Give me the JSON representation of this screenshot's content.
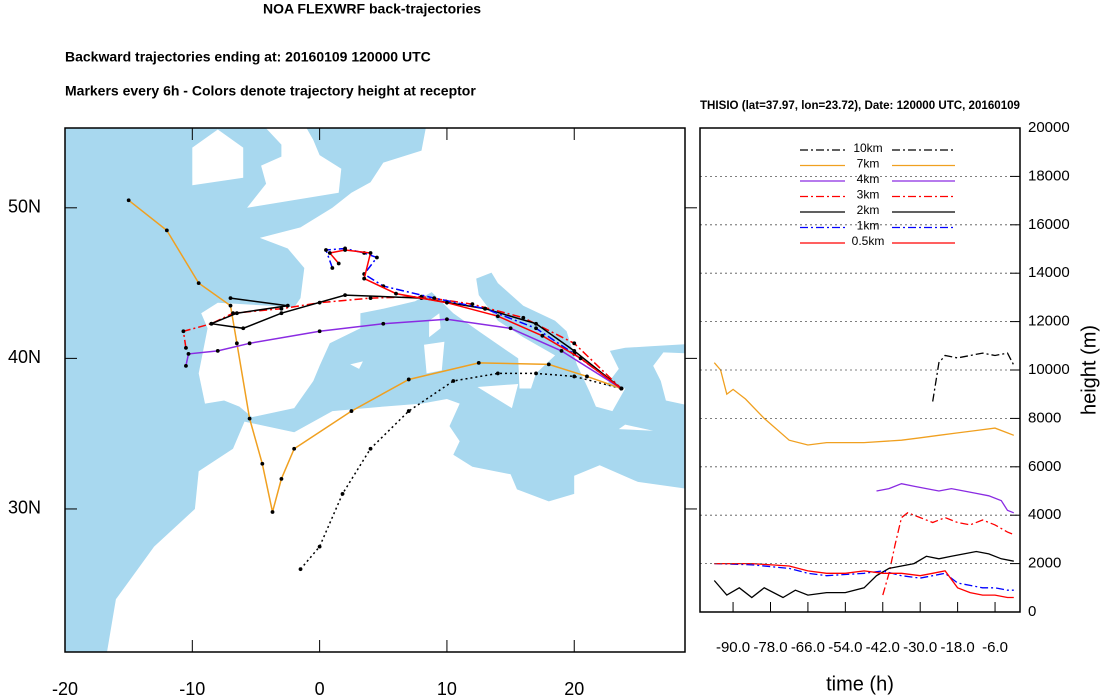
{
  "title": "NOA FLEXWRF back-trajectories",
  "subtitle": "Backward trajectories ending at: 20160109  120000 UTC",
  "note": "Markers every 6h - Colors denote trajectory height at receptor",
  "chart_data": [
    {
      "type": "trajectory-map",
      "xlim": [
        -20,
        28.7
      ],
      "ylim": [
        20.5,
        55.3
      ],
      "xticks": [
        -20,
        -10,
        0,
        10,
        20
      ],
      "yticks": [
        {
          "value": 30,
          "label": "30N"
        },
        {
          "value": 40,
          "label": "40N"
        },
        {
          "value": 50,
          "label": "50N"
        }
      ],
      "markers": true,
      "series": [
        {
          "color": "#000000",
          "dash": "dotted",
          "x": [
            -1.5,
            0,
            1.8,
            4,
            7,
            10.5,
            14,
            17,
            20,
            23.7
          ],
          "values": [
            26,
            27.5,
            31,
            34,
            36.5,
            38.5,
            39,
            39,
            38.8,
            38
          ]
        },
        {
          "color": "#f0a020",
          "dash": "solid",
          "x": [
            -15,
            -12,
            -9.5,
            -7,
            -6.5,
            -5.5,
            -4.5,
            -3.7,
            -3,
            -2,
            2.5,
            7,
            12.5,
            18,
            21,
            23.7
          ],
          "values": [
            50.5,
            48.5,
            45,
            43.5,
            41,
            36,
            33,
            29.8,
            32,
            34,
            36.5,
            38.6,
            39.7,
            39.6,
            38.8,
            38
          ]
        },
        {
          "color": "#8a2be2",
          "dash": "solid",
          "x": [
            -10.5,
            -10.3,
            -8,
            -5.5,
            0,
            5,
            10,
            15,
            19,
            23.7
          ],
          "values": [
            39.5,
            40.3,
            40.5,
            41,
            41.8,
            42.3,
            42.6,
            42,
            40.5,
            38
          ]
        },
        {
          "color": "#ff0000",
          "dash": "dash-dot",
          "x": [
            -10.5,
            -10.7,
            -8.5,
            -6.8,
            -3,
            0,
            4,
            8,
            12,
            16,
            20,
            23.7
          ],
          "values": [
            40.7,
            41.8,
            42.3,
            43,
            43.3,
            43.7,
            44,
            44.1,
            43.6,
            42.7,
            41,
            38
          ]
        },
        {
          "color": "#000000",
          "dash": "solid",
          "x": [
            -7,
            -2.5,
            -6.5,
            -8.5,
            -6,
            -3,
            2,
            8,
            13,
            17,
            20,
            23.7
          ],
          "values": [
            44,
            43.5,
            43,
            42.3,
            42,
            43,
            44.2,
            44,
            43.3,
            42.3,
            40.5,
            38
          ]
        },
        {
          "color": "#0000ff",
          "dash": "dash-dot",
          "x": [
            1,
            0.5,
            2,
            3.5,
            4.5,
            3.5,
            5,
            9,
            13,
            17,
            20,
            23.7
          ],
          "values": [
            46,
            47.2,
            47.3,
            47,
            46.7,
            45.6,
            44.8,
            44,
            43.3,
            42,
            40.3,
            38
          ]
        },
        {
          "color": "#ff0000",
          "dash": "solid",
          "x": [
            1.5,
            0.8,
            2,
            4,
            3.5,
            6,
            10,
            14,
            17.5,
            20.5,
            23.7
          ],
          "values": [
            46.3,
            47,
            47.2,
            47,
            45.3,
            44.3,
            43.7,
            42.8,
            41.5,
            40,
            38
          ]
        }
      ]
    },
    {
      "type": "line",
      "title": "THISIO (lat=37.97,  lon=23.72), Date: 120000 UTC, 20160109",
      "x_label": "time (h)",
      "y_label": "height (m)",
      "xlim": [
        -100.6,
        2
      ],
      "ylim": [
        0,
        20000
      ],
      "xticks": [
        {
          "value": -90,
          "label": "-90.0"
        },
        {
          "value": -78,
          "label": "-78.0"
        },
        {
          "value": -66,
          "label": "-66.0"
        },
        {
          "value": -54,
          "label": "-54.0"
        },
        {
          "value": -42,
          "label": "-42.0"
        },
        {
          "value": -30,
          "label": "-30.0"
        },
        {
          "value": -18,
          "label": "-18.0"
        },
        {
          "value": -6,
          "label": "-6.0"
        }
      ],
      "yticks": [
        0,
        2000,
        4000,
        6000,
        8000,
        10000,
        12000,
        14000,
        16000,
        18000,
        20000
      ],
      "grid": true,
      "series": [
        {
          "name": "10km",
          "color": "#000000",
          "dash": "dash-dot",
          "x": [
            -26,
            -24,
            -22,
            -18,
            -14,
            -10,
            -6,
            -2,
            0
          ],
          "values": [
            8700,
            10300,
            10600,
            10500,
            10600,
            10700,
            10600,
            10700,
            10200
          ]
        },
        {
          "name": "7km",
          "color": "#f0a020",
          "dash": "solid",
          "x": [
            -96,
            -94,
            -92,
            -90,
            -86,
            -80,
            -72,
            -66,
            -60,
            -48,
            -36,
            -30,
            -24,
            -18,
            -12,
            -6,
            -2,
            0
          ],
          "values": [
            10300,
            10000,
            9000,
            9200,
            8800,
            8000,
            7100,
            6900,
            7000,
            7000,
            7100,
            7200,
            7300,
            7400,
            7500,
            7600,
            7400,
            7300
          ]
        },
        {
          "name": "4km",
          "color": "#8a2be2",
          "dash": "solid",
          "x": [
            -44,
            -40,
            -36,
            -32,
            -28,
            -24,
            -20,
            -16,
            -12,
            -8,
            -4,
            -2,
            0
          ],
          "values": [
            5000,
            5100,
            5300,
            5200,
            5100,
            5000,
            5100,
            5000,
            4900,
            4800,
            4600,
            4200,
            4100
          ]
        },
        {
          "name": "3km",
          "color": "#ff0000",
          "dash": "dash-dot",
          "x": [
            -42,
            -40,
            -38,
            -36,
            -34,
            -30,
            -26,
            -22,
            -18,
            -14,
            -10,
            -6,
            -2,
            0
          ],
          "values": [
            700,
            1600,
            2800,
            3900,
            4100,
            3900,
            3700,
            3900,
            3700,
            3600,
            3800,
            3600,
            3300,
            3200
          ]
        },
        {
          "name": "2km",
          "color": "#000000",
          "dash": "solid",
          "x": [
            -96,
            -92,
            -88,
            -84,
            -80,
            -74,
            -70,
            -66,
            -60,
            -54,
            -48,
            -44,
            -40,
            -36,
            -32,
            -28,
            -24,
            -20,
            -16,
            -12,
            -8,
            -4,
            0
          ],
          "values": [
            1300,
            700,
            1000,
            600,
            1000,
            600,
            900,
            700,
            800,
            800,
            1000,
            1500,
            1800,
            1900,
            2000,
            2300,
            2200,
            2300,
            2400,
            2500,
            2400,
            2200,
            2100
          ]
        },
        {
          "name": "1km",
          "color": "#0000ff",
          "dash": "dash-dot",
          "x": [
            -96,
            -84,
            -72,
            -66,
            -60,
            -54,
            -48,
            -42,
            -36,
            -30,
            -26,
            -22,
            -18,
            -14,
            -10,
            -6,
            -2,
            0
          ],
          "values": [
            2000,
            1950,
            1800,
            1600,
            1500,
            1550,
            1600,
            1700,
            1500,
            1400,
            1500,
            1600,
            1200,
            1100,
            1000,
            1000,
            900,
            900
          ]
        },
        {
          "name": "0.5km",
          "color": "#ff0000",
          "dash": "solid",
          "x": [
            -96,
            -84,
            -72,
            -66,
            -60,
            -54,
            -48,
            -42,
            -36,
            -30,
            -26,
            -22,
            -18,
            -14,
            -10,
            -6,
            -2,
            0
          ],
          "values": [
            2000,
            2000,
            1900,
            1700,
            1600,
            1600,
            1700,
            1600,
            1600,
            1500,
            1600,
            1700,
            1000,
            800,
            700,
            700,
            600,
            600
          ]
        }
      ]
    }
  ]
}
